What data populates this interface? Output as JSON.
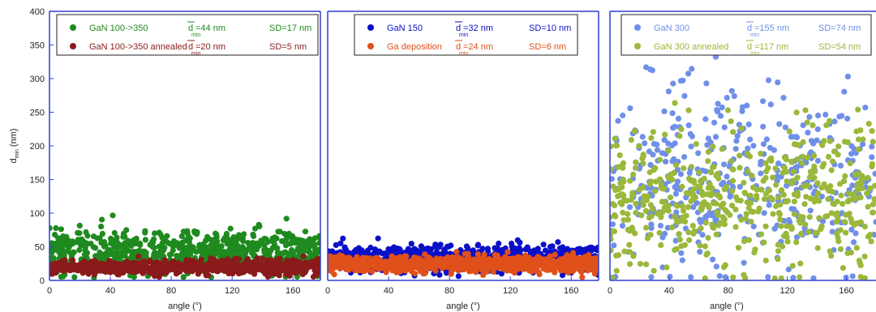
{
  "chart_data": [
    {
      "type": "scatter",
      "xlabel": "angle (°)",
      "ylabel_main": "d",
      "ylabel_sub": "min",
      "ylabel_unit": "(nm)",
      "xlim": [
        0,
        180
      ],
      "ylim": [
        0,
        400
      ],
      "xticks": [
        "0",
        "40",
        "80",
        "120",
        "160"
      ],
      "yticks": [
        "0",
        "50",
        "100",
        "150",
        "200",
        "250",
        "300",
        "350",
        "400"
      ],
      "grid": false,
      "legend_position": "top",
      "series": [
        {
          "name": "GaN 100->350",
          "color": "#1f8a1f",
          "mean_label": "=44 nm",
          "sd_label": "SD=17 nm",
          "mean": 44,
          "sd": 17,
          "n": 700,
          "seed": 11
        },
        {
          "name": "GaN 100->350 annealed",
          "color": "#8b1a1a",
          "mean_label": "=20 nm",
          "sd_label": "SD=5 nm",
          "mean": 20,
          "sd": 5,
          "n": 800,
          "seed": 23
        }
      ]
    },
    {
      "type": "scatter",
      "xlabel": "angle (°)",
      "xlim": [
        0,
        180
      ],
      "ylim": [
        0,
        400
      ],
      "xticks": [
        "0",
        "40",
        "80",
        "120",
        "160"
      ],
      "grid": false,
      "legend_position": "top",
      "series": [
        {
          "name": "GaN 150",
          "color": "#0a10c8",
          "mean_label": "=32 nm",
          "sd_label": "SD=10 nm",
          "mean": 32,
          "sd": 10,
          "n": 700,
          "seed": 37
        },
        {
          "name": "Ga deposition",
          "color": "#e0501a",
          "mean_label": "=24 nm",
          "sd_label": "SD=6 nm",
          "mean": 24,
          "sd": 6,
          "n": 800,
          "seed": 41
        }
      ]
    },
    {
      "type": "scatter",
      "xlabel": "angle (°)",
      "xlim": [
        0,
        180
      ],
      "ylim": [
        0,
        400
      ],
      "xticks": [
        "0",
        "40",
        "80",
        "120",
        "160"
      ],
      "grid": false,
      "legend_position": "top",
      "series": [
        {
          "name": "GaN 300",
          "color": "#6f8fe8",
          "mean_label": "=155 nm",
          "sd_label": "SD=74 nm",
          "mean": 155,
          "sd": 74,
          "n": 420,
          "seed": 53
        },
        {
          "name": "GaN 300 annealed",
          "color": "#9ab83a",
          "mean_label": "=117 nm",
          "sd_label": "SD=54 nm",
          "mean": 117,
          "sd": 54,
          "n": 520,
          "seed": 67
        }
      ]
    }
  ]
}
